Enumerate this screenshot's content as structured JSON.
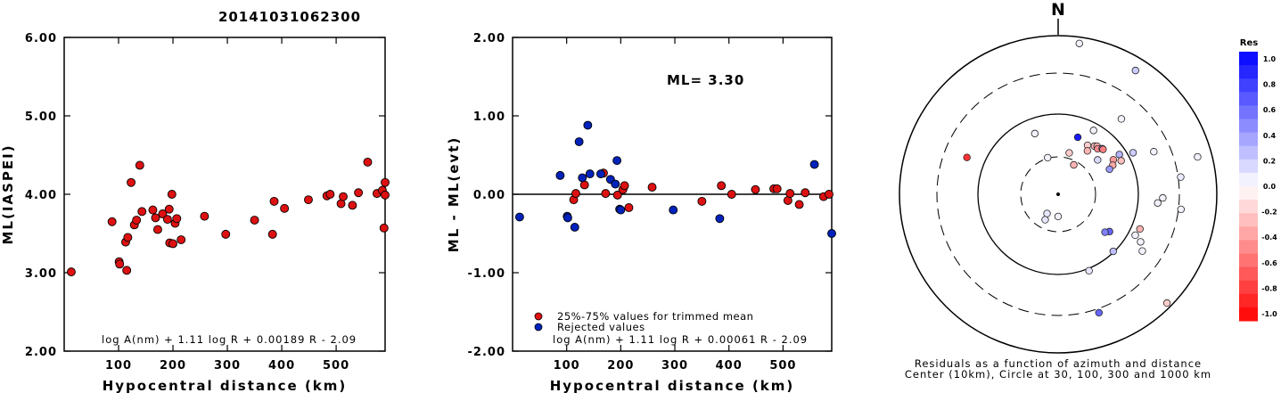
{
  "title": "20141031062300",
  "colors": {
    "red": "#dd1111",
    "blue": "#0022bb",
    "black": "#000000"
  },
  "chart_data": [
    {
      "type": "scatter",
      "xlabel": "Hypocentral distance (km)",
      "ylabel": "ML(IASPEI)",
      "xlim": [
        0,
        590
      ],
      "ylim": [
        2.0,
        6.0
      ],
      "xticks": [
        100,
        200,
        300,
        400,
        500
      ],
      "yticks": [
        "2.00",
        "3.00",
        "4.00",
        "5.00",
        "6.00"
      ],
      "formula": "log A(nm) + 1.11 log R + 0.00189 R - 2.09",
      "points": [
        [
          13,
          3.01
        ],
        [
          88,
          3.65
        ],
        [
          101,
          3.14
        ],
        [
          102,
          3.11
        ],
        [
          113,
          3.39
        ],
        [
          115,
          3.03
        ],
        [
          117,
          3.45
        ],
        [
          123,
          4.15
        ],
        [
          129,
          3.61
        ],
        [
          133,
          3.67
        ],
        [
          139,
          4.37
        ],
        [
          143,
          3.78
        ],
        [
          163,
          3.8
        ],
        [
          168,
          3.7
        ],
        [
          172,
          3.55
        ],
        [
          181,
          3.75
        ],
        [
          190,
          3.68
        ],
        [
          193,
          3.81
        ],
        [
          194,
          3.38
        ],
        [
          198,
          4.0
        ],
        [
          200,
          3.37
        ],
        [
          204,
          3.63
        ],
        [
          207,
          3.69
        ],
        [
          215,
          3.42
        ],
        [
          258,
          3.72
        ],
        [
          297,
          3.49
        ],
        [
          350,
          3.67
        ],
        [
          383,
          3.49
        ],
        [
          386,
          3.91
        ],
        [
          405,
          3.82
        ],
        [
          449,
          3.93
        ],
        [
          483,
          3.98
        ],
        [
          489,
          4.0
        ],
        [
          509,
          3.88
        ],
        [
          513,
          3.97
        ],
        [
          530,
          3.86
        ],
        [
          541,
          4.02
        ],
        [
          558,
          4.41
        ],
        [
          575,
          4.01
        ],
        [
          585,
          4.05
        ],
        [
          588,
          3.57
        ],
        [
          590,
          3.99
        ],
        [
          591,
          4.15
        ]
      ]
    },
    {
      "type": "scatter",
      "xlabel": "Hypocentral distance (km)",
      "ylabel": "ML - ML(evt)",
      "xlim": [
        0,
        590
      ],
      "ylim": [
        -2.0,
        2.0
      ],
      "xticks": [
        100,
        200,
        300,
        400,
        500
      ],
      "yticks": [
        "-2.00",
        "-1.00",
        "0.00",
        "1.00",
        "2.00"
      ],
      "ml_label": "ML= 3.30",
      "formula": "log A(nm) + 1.11 log R + 0.00061 R - 2.09",
      "legend": [
        "25%-75% values for trimmed mean",
        "Rejected values"
      ],
      "series": [
        {
          "name": "25%-75% values for trimmed mean",
          "color": "red",
          "points": [
            [
              113,
              -0.07
            ],
            [
              117,
              0.01
            ],
            [
              133,
              0.12
            ],
            [
              168,
              0.27
            ],
            [
              172,
              0.01
            ],
            [
              194,
              -0.01
            ],
            [
              204,
              0.06
            ],
            [
              207,
              0.11
            ],
            [
              215,
              -0.17
            ],
            [
              258,
              0.09
            ],
            [
              350,
              -0.09
            ],
            [
              386,
              0.11
            ],
            [
              405,
              0.0
            ],
            [
              449,
              0.06
            ],
            [
              483,
              0.07
            ],
            [
              489,
              0.07
            ],
            [
              509,
              -0.08
            ],
            [
              513,
              0.01
            ],
            [
              530,
              -0.13
            ],
            [
              541,
              0.02
            ],
            [
              575,
              -0.03
            ],
            [
              585,
              0.0
            ]
          ]
        },
        {
          "name": "Rejected values",
          "color": "blue",
          "points": [
            [
              13,
              -0.29
            ],
            [
              88,
              0.24
            ],
            [
              101,
              -0.28
            ],
            [
              102,
              -0.3
            ],
            [
              115,
              -0.42
            ],
            [
              123,
              0.67
            ],
            [
              129,
              0.21
            ],
            [
              139,
              0.88
            ],
            [
              143,
              0.26
            ],
            [
              163,
              0.26
            ],
            [
              181,
              0.19
            ],
            [
              190,
              0.13
            ],
            [
              193,
              0.43
            ],
            [
              198,
              -0.19
            ],
            [
              200,
              -0.2
            ],
            [
              297,
              -0.2
            ],
            [
              383,
              -0.31
            ],
            [
              558,
              0.38
            ],
            [
              591,
              -0.5
            ]
          ]
        }
      ]
    },
    {
      "type": "scatter",
      "subtype": "polar",
      "north_label": "N",
      "caption_line1": "Residuals as a function of azimuth and distance",
      "caption_line2": "Center (10km), Circle at 30, 100, 300 and 1000 km",
      "colorbar_title": "Res",
      "colorbar_ticks": [
        "1.0",
        "0.8",
        "0.6",
        "0.4",
        "0.2",
        "0.0",
        "-0.2",
        "-0.4",
        "-0.6",
        "-0.8",
        "-1.0"
      ],
      "points_res": [
        [
          -0.8,
          0.62
        ],
        [
          0.05,
          0.14
        ],
        [
          0.05,
          0.24
        ],
        [
          -0.2,
          0.27
        ],
        [
          0.9,
          0.38
        ],
        [
          0.05,
          0.41
        ],
        [
          0.05,
          0.46
        ],
        [
          0.05,
          0.62
        ],
        [
          0.05,
          0.66
        ],
        [
          0.05,
          0.91
        ],
        [
          0.08,
          0.78
        ],
        [
          -0.2,
          0.36
        ],
        [
          -0.3,
          0.33
        ],
        [
          0.05,
          0.96
        ],
        [
          0.05,
          0.78
        ],
        [
          -0.3,
          0.56
        ],
        [
          0.05,
          0.66
        ],
        [
          0.05,
          0.63
        ],
        [
          -0.2,
          0.97
        ],
        [
          0.05,
          0.64
        ],
        [
          0.1,
          0.52
        ],
        [
          0.1,
          0.18
        ],
        [
          0.1,
          0.14
        ],
        [
          0.6,
          0.79
        ],
        [
          -0.3,
          0.21
        ],
        [
          0.2,
          0.92
        ],
        [
          -0.25,
          0.38
        ],
        [
          -0.3,
          0.39
        ],
        [
          -0.45,
          0.38
        ],
        [
          0.5,
          0.4
        ],
        [
          -0.5,
          0.4
        ],
        [
          0.05,
          0.55
        ],
        [
          0.05,
          0.6
        ],
        [
          0.3,
          0.46
        ],
        [
          0.2,
          0.54
        ],
        [
          -0.4,
          0.41
        ],
        [
          -0.35,
          0.39
        ],
        [
          0.4,
          0.36
        ],
        [
          0.6,
          0.4
        ],
        [
          0.5,
          0.38
        ],
        [
          -0.25,
          0.45
        ],
        [
          0.15,
          0.33
        ],
        [
          0.25,
          0.5
        ]
      ],
      "points_az": [
        292,
        180,
        344,
        15,
        19,
        339,
        29,
        40,
        66,
        75,
        82,
        31,
        34,
        8,
        97,
        113,
        92,
        95,
        135,
        124,
        158,
        207,
        210,
        161,
        28,
        32,
        37,
        39,
        41,
        44,
        45,
        118,
        120,
        57,
        61,
        58,
        62,
        64,
        126,
        129,
        62,
        49,
        136
      ]
    }
  ]
}
